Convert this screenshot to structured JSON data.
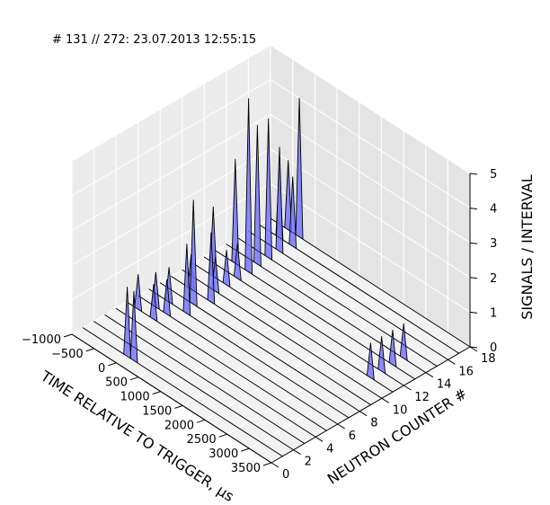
{
  "chart_data": {
    "type": "3d-waterfall",
    "title": "# 131 // 272: 23.07.2013 12:55:15",
    "xlabel": "TIME RELATIVE TO TRIGGER, μs",
    "ylabel": "NEUTRON COUNTER #",
    "zlabel": "SIGNALS / INTERVAL",
    "x_ticks": [
      "−1000",
      "−500",
      "0",
      "500",
      "1000",
      "1500",
      "2000",
      "2500",
      "3000",
      "3500"
    ],
    "y_ticks": [
      "0",
      "2",
      "4",
      "6",
      "8",
      "10",
      "12",
      "14",
      "16",
      "18"
    ],
    "z_ticks": [
      "0",
      "1",
      "2",
      "3",
      "4",
      "5"
    ],
    "xlim": [
      -1000,
      3500
    ],
    "ylim": [
      0,
      18
    ],
    "zlim": [
      0,
      5
    ],
    "grid": true,
    "fill_color": "#7777ff",
    "edge_color": "#000000",
    "series": [
      {
        "counter": 1,
        "peaks": [
          {
            "t": 0,
            "v": 2
          },
          {
            "t": 150,
            "v": 2
          }
        ]
      },
      {
        "counter": 5,
        "peaks": [
          {
            "t": -750,
            "v": 1
          },
          {
            "t": -400,
            "v": 1
          }
        ]
      },
      {
        "counter": 6,
        "peaks": [
          {
            "t": -600,
            "v": 1
          },
          {
            "t": -350,
            "v": 1
          }
        ]
      },
      {
        "counter": 7,
        "peaks": [
          {
            "t": -550,
            "v": 1
          },
          {
            "t": -150,
            "v": 2
          }
        ]
      },
      {
        "counter": 8,
        "peaks": [
          {
            "t": -250,
            "v": 3
          }
        ]
      },
      {
        "counter": 9,
        "peaks": [
          {
            "t": -550,
            "v": 1
          },
          {
            "t": -100,
            "v": 2
          }
        ]
      },
      {
        "counter": 10,
        "peaks": [
          {
            "t": -250,
            "v": 1
          }
        ]
      },
      {
        "counter": 11,
        "peaks": [
          {
            "t": -550,
            "v": 2
          },
          {
            "t": -250,
            "v": 1
          },
          {
            "t": 3000,
            "v": 1
          }
        ]
      },
      {
        "counter": 12,
        "peaks": [
          {
            "t": -250,
            "v": 1
          },
          {
            "t": 3000,
            "v": 1
          }
        ]
      },
      {
        "counter": 13,
        "peaks": [
          {
            "t": -550,
            "v": 3
          },
          {
            "t": -250,
            "v": 5
          },
          {
            "t": 3000,
            "v": 1
          }
        ]
      },
      {
        "counter": 14,
        "peaks": [
          {
            "t": -300,
            "v": 4
          },
          {
            "t": 3000,
            "v": 1
          }
        ]
      },
      {
        "counter": 15,
        "peaks": [
          {
            "t": -300,
            "v": 4
          }
        ]
      },
      {
        "counter": 16,
        "peaks": [
          {
            "t": -300,
            "v": 3
          }
        ]
      },
      {
        "counter": 17,
        "peaks": [
          {
            "t": -550,
            "v": 2
          },
          {
            "t": -250,
            "v": 2
          }
        ]
      },
      {
        "counter": 18,
        "peaks": [
          {
            "t": -600,
            "v": 2
          },
          {
            "t": -350,
            "v": 4
          }
        ]
      }
    ]
  }
}
